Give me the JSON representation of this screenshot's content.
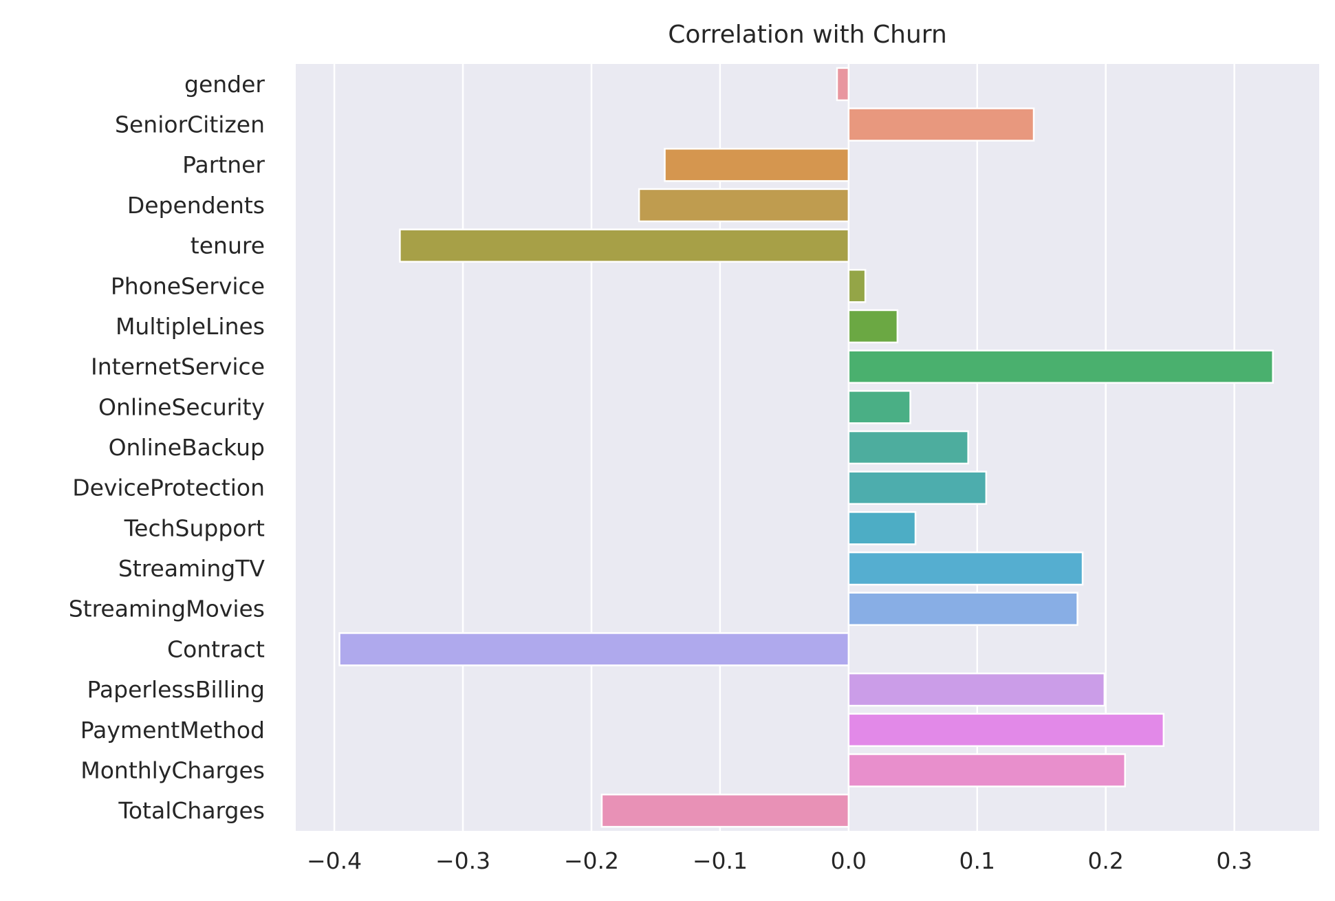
{
  "chart_data": {
    "type": "bar",
    "orientation": "horizontal",
    "title": "Correlation with Churn",
    "xlabel": "",
    "ylabel": "",
    "xlim": [
      -0.43,
      0.366
    ],
    "xticks": [
      -0.4,
      -0.3,
      -0.2,
      -0.1,
      0.0,
      0.1,
      0.2,
      0.3
    ],
    "xtick_labels": [
      "−0.4",
      "−0.3",
      "−0.2",
      "−0.1",
      "0.0",
      "0.1",
      "0.2",
      "0.3"
    ],
    "grid": true,
    "legend": "none",
    "background_color": "#eaeaf2",
    "grid_color": "#ffffff",
    "text_color": "#262626",
    "categories": [
      "gender",
      "SeniorCitizen",
      "Partner",
      "Dependents",
      "tenure",
      "PhoneService",
      "MultipleLines",
      "InternetService",
      "OnlineSecurity",
      "OnlineBackup",
      "DeviceProtection",
      "TechSupport",
      "StreamingTV",
      "StreamingMovies",
      "Contract",
      "PaperlessBilling",
      "PaymentMethod",
      "MonthlyCharges",
      "TotalCharges"
    ],
    "values": [
      -0.009,
      0.144,
      -0.143,
      -0.163,
      -0.349,
      0.013,
      0.038,
      0.33,
      0.048,
      0.093,
      0.107,
      0.052,
      0.182,
      0.178,
      -0.396,
      0.199,
      0.245,
      0.215,
      -0.192
    ],
    "colors": [
      "#e8969f",
      "#e8987e",
      "#d5964f",
      "#bf9c4f",
      "#a7a047",
      "#94a547",
      "#6ba843",
      "#4ab06e",
      "#4aaf85",
      "#4dad9e",
      "#4dadad",
      "#4dadc5",
      "#55aed0",
      "#88aee5",
      "#afa9ed",
      "#cb9de8",
      "#e289e8",
      "#e88fcc",
      "#e891b6"
    ]
  }
}
